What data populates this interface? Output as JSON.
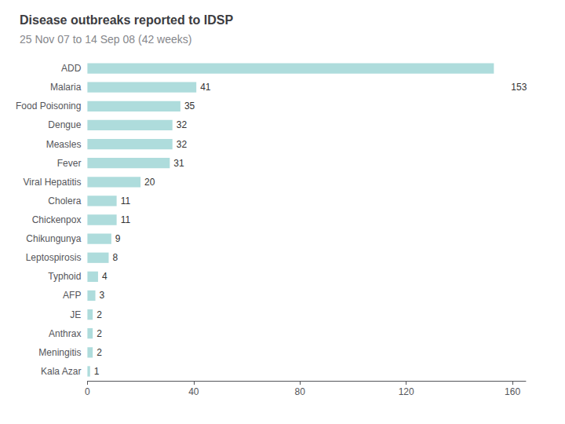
{
  "chart_data": {
    "type": "bar",
    "orientation": "horizontal",
    "title": "Disease outbreaks reported to IDSP",
    "subtitle": "25 Nov 07 to 14 Sep 08 (42 weeks)",
    "categories": [
      "Kala Azar",
      "Meningitis",
      "Anthrax",
      "JE",
      "AFP",
      "Typhoid",
      "Leptospirosis",
      "Chikungunya",
      "Chickenpox",
      "Cholera",
      "Viral Hepatitis",
      "Fever",
      "Measles",
      "Dengue",
      "Food Poisoning",
      "Malaria",
      "ADD"
    ],
    "values": [
      1,
      2,
      2,
      2,
      3,
      4,
      8,
      9,
      11,
      11,
      20,
      31,
      32,
      32,
      35,
      41,
      153
    ],
    "data_labels": true,
    "value_labels": [
      "1",
      "2",
      "2",
      "2",
      "3",
      "4",
      "8",
      "9",
      "11",
      "11",
      "20",
      "31",
      "32",
      "32",
      "35",
      "41",
      null
    ],
    "annotations": [
      {
        "text": "153",
        "x": 158,
        "category": "Malaria"
      }
    ],
    "color": "#AEDCDC",
    "xlim": [
      0,
      165
    ],
    "xticks": [
      0,
      40,
      80,
      120,
      160
    ],
    "grid": false
  }
}
